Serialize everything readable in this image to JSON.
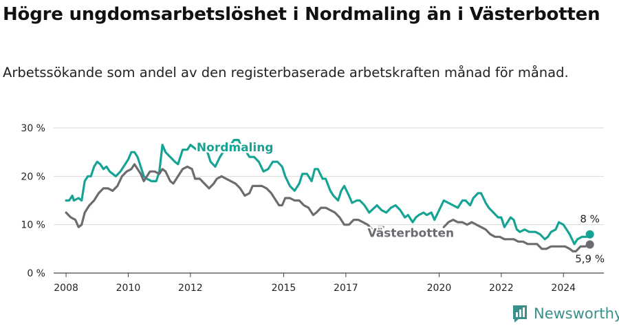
{
  "header": {
    "title": "Högre ungdomsarbetslöshet i Nordmaling än i Västerbotten",
    "subtitle": "Arbetssökande som andel av den registerbaserade arbetskraften månad för månad."
  },
  "brand": {
    "name": "Newsworthy",
    "icon": "newsworthy-logo-icon",
    "color": "#3a8f8c"
  },
  "chart_data": {
    "type": "line",
    "ylim": [
      0,
      30
    ],
    "y_ticks": [
      0,
      10,
      20,
      30
    ],
    "y_tick_labels": [
      "0 %",
      "10 %",
      "20 %",
      "30 %"
    ],
    "xlim": [
      2007.6,
      2025.3
    ],
    "x_ticks": [
      2008,
      2010,
      2012,
      2015,
      2017,
      2020,
      2022,
      2024
    ],
    "x_tick_labels": [
      "2008",
      "2010",
      "2012",
      "2015",
      "2017",
      "2020",
      "2022",
      "2024"
    ],
    "grid": "horizontal",
    "series": [
      {
        "name": "Nordmaling",
        "color": "#16a394",
        "end_label": "8 %",
        "values": [
          [
            2008.0,
            15
          ],
          [
            2008.1,
            15
          ],
          [
            2008.2,
            16
          ],
          [
            2008.25,
            15
          ],
          [
            2008.4,
            15.5
          ],
          [
            2008.5,
            15
          ],
          [
            2008.6,
            19
          ],
          [
            2008.7,
            20
          ],
          [
            2008.8,
            20
          ],
          [
            2008.9,
            22
          ],
          [
            2009.0,
            23
          ],
          [
            2009.1,
            22.5
          ],
          [
            2009.2,
            21.5
          ],
          [
            2009.3,
            22
          ],
          [
            2009.4,
            21
          ],
          [
            2009.6,
            20
          ],
          [
            2009.75,
            21
          ],
          [
            2009.85,
            22
          ],
          [
            2010.0,
            23.5
          ],
          [
            2010.1,
            25
          ],
          [
            2010.2,
            25
          ],
          [
            2010.3,
            24
          ],
          [
            2010.4,
            22
          ],
          [
            2010.5,
            20
          ],
          [
            2010.6,
            19.5
          ],
          [
            2010.75,
            19
          ],
          [
            2010.9,
            19
          ],
          [
            2011.0,
            21
          ],
          [
            2011.1,
            26.5
          ],
          [
            2011.2,
            25
          ],
          [
            2011.35,
            24
          ],
          [
            2011.5,
            23
          ],
          [
            2011.6,
            22.5
          ],
          [
            2011.75,
            25.5
          ],
          [
            2011.9,
            25.5
          ],
          [
            2012.0,
            26.5
          ],
          [
            2012.2,
            25.5
          ],
          [
            2012.3,
            26
          ],
          [
            2012.45,
            26
          ],
          [
            2012.55,
            25
          ],
          [
            2012.65,
            23
          ],
          [
            2012.8,
            22
          ],
          [
            2012.95,
            24
          ],
          [
            2013.1,
            25.5
          ],
          [
            2013.25,
            26
          ],
          [
            2013.4,
            27.5
          ],
          [
            2013.55,
            27.5
          ],
          [
            2013.65,
            26
          ],
          [
            2013.75,
            25.5
          ],
          [
            2013.9,
            24
          ],
          [
            2014.05,
            24
          ],
          [
            2014.2,
            23
          ],
          [
            2014.35,
            21
          ],
          [
            2014.5,
            21.5
          ],
          [
            2014.65,
            23
          ],
          [
            2014.8,
            23
          ],
          [
            2014.95,
            22
          ],
          [
            2015.05,
            20
          ],
          [
            2015.2,
            18
          ],
          [
            2015.35,
            17
          ],
          [
            2015.5,
            18.5
          ],
          [
            2015.6,
            20.5
          ],
          [
            2015.75,
            20.5
          ],
          [
            2015.9,
            19
          ],
          [
            2016.0,
            21.5
          ],
          [
            2016.1,
            21.5
          ],
          [
            2016.25,
            19.5
          ],
          [
            2016.35,
            19.5
          ],
          [
            2016.5,
            17
          ],
          [
            2016.6,
            16
          ],
          [
            2016.75,
            15
          ],
          [
            2016.85,
            17
          ],
          [
            2016.95,
            18
          ],
          [
            2017.1,
            16
          ],
          [
            2017.2,
            14.5
          ],
          [
            2017.35,
            15
          ],
          [
            2017.45,
            15
          ],
          [
            2017.6,
            14
          ],
          [
            2017.75,
            12.5
          ],
          [
            2018.0,
            14
          ],
          [
            2018.15,
            13
          ],
          [
            2018.3,
            12.5
          ],
          [
            2018.45,
            13.5
          ],
          [
            2018.6,
            14
          ],
          [
            2018.75,
            13
          ],
          [
            2018.9,
            11.5
          ],
          [
            2019.0,
            12
          ],
          [
            2019.15,
            10.5
          ],
          [
            2019.25,
            11.5
          ],
          [
            2019.35,
            12
          ],
          [
            2019.5,
            12.5
          ],
          [
            2019.6,
            12
          ],
          [
            2019.75,
            12.5
          ],
          [
            2019.85,
            11
          ],
          [
            2020.0,
            13
          ],
          [
            2020.15,
            15
          ],
          [
            2020.3,
            14.5
          ],
          [
            2020.45,
            14
          ],
          [
            2020.6,
            13.5
          ],
          [
            2020.75,
            15
          ],
          [
            2020.85,
            15
          ],
          [
            2021.0,
            14
          ],
          [
            2021.1,
            15.5
          ],
          [
            2021.25,
            16.5
          ],
          [
            2021.35,
            16.5
          ],
          [
            2021.5,
            14.5
          ],
          [
            2021.6,
            13.5
          ],
          [
            2021.75,
            12.5
          ],
          [
            2021.9,
            11.5
          ],
          [
            2022.0,
            11.5
          ],
          [
            2022.1,
            9.5
          ],
          [
            2022.2,
            10.5
          ],
          [
            2022.3,
            11.5
          ],
          [
            2022.4,
            11
          ],
          [
            2022.5,
            9
          ],
          [
            2022.6,
            8.5
          ],
          [
            2022.75,
            9
          ],
          [
            2022.9,
            8.5
          ],
          [
            2023.1,
            8.5
          ],
          [
            2023.25,
            8
          ],
          [
            2023.4,
            7
          ],
          [
            2023.5,
            7.5
          ],
          [
            2023.6,
            8.5
          ],
          [
            2023.75,
            9
          ],
          [
            2023.85,
            10.5
          ],
          [
            2024.0,
            10
          ],
          [
            2024.1,
            9
          ],
          [
            2024.2,
            8
          ],
          [
            2024.35,
            6
          ],
          [
            2024.45,
            7
          ],
          [
            2024.6,
            7.5
          ],
          [
            2024.75,
            7.5
          ],
          [
            2024.85,
            8
          ]
        ]
      },
      {
        "name": "Västerbotten",
        "color": "#6b6b70",
        "end_label": "5,9 %",
        "values": [
          [
            2008.0,
            12.5
          ],
          [
            2008.15,
            11.5
          ],
          [
            2008.3,
            11
          ],
          [
            2008.4,
            9.5
          ],
          [
            2008.5,
            10
          ],
          [
            2008.6,
            12.5
          ],
          [
            2008.75,
            14
          ],
          [
            2008.9,
            15
          ],
          [
            2009.05,
            16.5
          ],
          [
            2009.2,
            17.5
          ],
          [
            2009.35,
            17.5
          ],
          [
            2009.5,
            17
          ],
          [
            2009.65,
            18
          ],
          [
            2009.8,
            20
          ],
          [
            2009.95,
            21
          ],
          [
            2010.1,
            21.5
          ],
          [
            2010.2,
            22.5
          ],
          [
            2010.3,
            21.5
          ],
          [
            2010.4,
            20.5
          ],
          [
            2010.5,
            19
          ],
          [
            2010.6,
            20
          ],
          [
            2010.7,
            21
          ],
          [
            2010.85,
            21
          ],
          [
            2011.0,
            20.5
          ],
          [
            2011.1,
            21.5
          ],
          [
            2011.2,
            21
          ],
          [
            2011.35,
            19
          ],
          [
            2011.45,
            18.5
          ],
          [
            2011.6,
            20
          ],
          [
            2011.75,
            21.5
          ],
          [
            2011.9,
            22
          ],
          [
            2012.05,
            21.5
          ],
          [
            2012.15,
            19.5
          ],
          [
            2012.3,
            19.5
          ],
          [
            2012.45,
            18.5
          ],
          [
            2012.6,
            17.5
          ],
          [
            2012.75,
            18.5
          ],
          [
            2012.85,
            19.5
          ],
          [
            2013.0,
            20
          ],
          [
            2013.15,
            19.5
          ],
          [
            2013.3,
            19
          ],
          [
            2013.45,
            18.5
          ],
          [
            2013.6,
            17.5
          ],
          [
            2013.75,
            16
          ],
          [
            2013.9,
            16.5
          ],
          [
            2014.0,
            18
          ],
          [
            2014.15,
            18
          ],
          [
            2014.3,
            18
          ],
          [
            2014.45,
            17.5
          ],
          [
            2014.6,
            16.5
          ],
          [
            2014.75,
            15
          ],
          [
            2014.85,
            14
          ],
          [
            2014.95,
            14
          ],
          [
            2015.05,
            15.5
          ],
          [
            2015.2,
            15.5
          ],
          [
            2015.35,
            15
          ],
          [
            2015.5,
            15
          ],
          [
            2015.65,
            14
          ],
          [
            2015.8,
            13.5
          ],
          [
            2015.95,
            12
          ],
          [
            2016.05,
            12.5
          ],
          [
            2016.2,
            13.5
          ],
          [
            2016.35,
            13.5
          ],
          [
            2016.5,
            13
          ],
          [
            2016.65,
            12.5
          ],
          [
            2016.8,
            11.5
          ],
          [
            2016.95,
            10
          ],
          [
            2017.1,
            10
          ],
          [
            2017.25,
            11
          ],
          [
            2017.4,
            11
          ],
          [
            2017.55,
            10.5
          ],
          [
            2017.7,
            10
          ],
          [
            2017.85,
            9
          ],
          [
            2017.95,
            8.5
          ]
        ]
      },
      {
        "values": [
          [
            2018.05,
            9.5
          ],
          [
            2018.2,
            9.5
          ]
        ]
      },
      {
        "values": [
          [
            2020.15,
            9.5
          ],
          [
            2020.3,
            10.5
          ],
          [
            2020.45,
            11
          ],
          [
            2020.6,
            10.5
          ],
          [
            2020.75,
            10.5
          ],
          [
            2020.9,
            10
          ],
          [
            2021.05,
            10.5
          ],
          [
            2021.2,
            10
          ],
          [
            2021.35,
            9.5
          ],
          [
            2021.5,
            9
          ],
          [
            2021.65,
            8
          ],
          [
            2021.8,
            7.5
          ],
          [
            2021.95,
            7.5
          ],
          [
            2022.1,
            7
          ],
          [
            2022.25,
            7
          ],
          [
            2022.4,
            7
          ],
          [
            2022.55,
            6.5
          ],
          [
            2022.7,
            6.5
          ],
          [
            2022.85,
            6
          ],
          [
            2023.0,
            6
          ],
          [
            2023.15,
            6
          ],
          [
            2023.3,
            5
          ],
          [
            2023.45,
            5
          ],
          [
            2023.6,
            5.5
          ],
          [
            2023.75,
            5.5
          ],
          [
            2023.9,
            5.5
          ],
          [
            2024.05,
            5.5
          ],
          [
            2024.2,
            5
          ],
          [
            2024.3,
            4.5
          ],
          [
            2024.4,
            4.5
          ],
          [
            2024.55,
            5.5
          ],
          [
            2024.7,
            5.5
          ],
          [
            2024.85,
            5.9
          ]
        ]
      }
    ]
  }
}
